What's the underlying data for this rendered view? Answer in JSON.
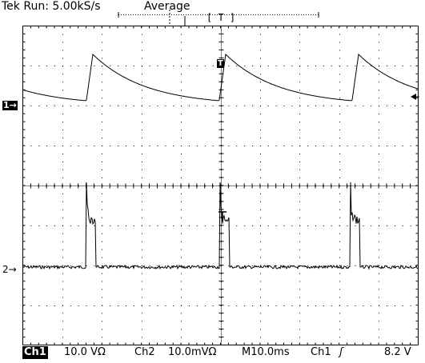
{
  "header": {
    "status": "Tek Run: 5.00kS/s",
    "mode": "Average",
    "trigger_position_label": "[ T ]"
  },
  "markers": {
    "ch1": "1→",
    "ch2": "2→",
    "trigger": "T"
  },
  "footer": {
    "ch1_label": "Ch1",
    "ch1_scale": "10.0 VΩ",
    "ch2_label": "Ch2",
    "ch2_scale": "10.0mVΩ",
    "timebase": "M10.0ms",
    "trigger_source": "Ch1",
    "trigger_slope": "ʃ",
    "trigger_level": "8.2 V"
  },
  "colors": {
    "background": "#ffffff",
    "trace": "#000000",
    "graticule": "#000000"
  }
}
